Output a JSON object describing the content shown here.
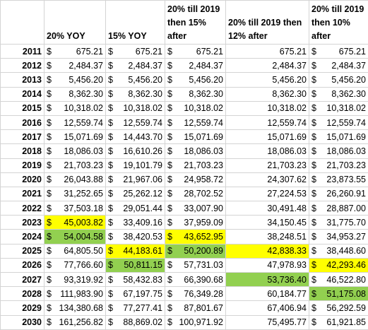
{
  "currency": "$",
  "table": {
    "columns": [
      {
        "header": "20% YOY",
        "currency": true
      },
      {
        "header": "15% YOY",
        "currency": true
      },
      {
        "header": "20% till 2019 then 15% after",
        "currency": true
      },
      {
        "header": "20% till 2019 then 12% after",
        "currency": false
      },
      {
        "header": "20% till 2019 then 10% after",
        "currency": true
      }
    ],
    "rows": [
      [
        "2011",
        "675.21",
        "675.21",
        "675.21",
        "675.21",
        "675.21"
      ],
      [
        "2012",
        "2,484.37",
        "2,484.37",
        "2,484.37",
        "2,484.37",
        "2,484.37"
      ],
      [
        "2013",
        "5,456.20",
        "5,456.20",
        "5,456.20",
        "5,456.20",
        "5,456.20"
      ],
      [
        "2014",
        "8,362.30",
        "8,362.30",
        "8,362.30",
        "8,362.30",
        "8,362.30"
      ],
      [
        "2015",
        "10,318.02",
        "10,318.02",
        "10,318.02",
        "10,318.02",
        "10,318.02"
      ],
      [
        "2016",
        "12,559.74",
        "12,559.74",
        "12,559.74",
        "12,559.74",
        "12,559.74"
      ],
      [
        "2017",
        "15,071.69",
        "14,443.70",
        "15,071.69",
        "15,071.69",
        "15,071.69"
      ],
      [
        "2018",
        "18,086.03",
        "16,610.26",
        "18,086.03",
        "18,086.03",
        "18,086.03"
      ],
      [
        "2019",
        "21,703.23",
        "19,101.79",
        "21,703.23",
        "21,703.23",
        "21,703.23"
      ],
      [
        "2020",
        "26,043.88",
        "21,967.06",
        "24,958.72",
        "24,307.62",
        "23,873.55"
      ],
      [
        "2021",
        "31,252.65",
        "25,262.12",
        "28,702.52",
        "27,224.53",
        "26,260.91"
      ],
      [
        "2022",
        "37,503.18",
        "29,051.44",
        "33,007.90",
        "30,491.48",
        "28,887.00"
      ],
      [
        "2023",
        "45,003.82",
        "33,409.16",
        "37,959.09",
        "34,150.45",
        "31,775.70"
      ],
      [
        "2024",
        "54,004.58",
        "38,420.53",
        "43,652.95",
        "38,248.51",
        "34,953.27"
      ],
      [
        "2025",
        "64,805.50",
        "44,183.61",
        "50,200.89",
        "42,838.33",
        "38,448.60"
      ],
      [
        "2026",
        "77,766.60",
        "50,811.15",
        "57,731.03",
        "47,978.93",
        "42,293.46"
      ],
      [
        "2027",
        "93,319.92",
        "58,432.83",
        "66,390.68",
        "53,736.40",
        "46,522.80"
      ],
      [
        "2028",
        "111,983.90",
        "67,197.75",
        "76,349.28",
        "60,184.77",
        "51,175.08"
      ],
      [
        "2029",
        "134,380.68",
        "77,277.41",
        "87,801.67",
        "67,406.94",
        "56,292.59"
      ],
      [
        "2030",
        "161,256.82",
        "88,869.02",
        "100,971.92",
        "75,495.77",
        "61,921.85"
      ]
    ],
    "highlights": [
      {
        "row": 12,
        "col": 1,
        "color": "#ffff00"
      },
      {
        "row": 13,
        "col": 1,
        "color": "#92d050"
      },
      {
        "row": 13,
        "col": 3,
        "color": "#ffff00"
      },
      {
        "row": 14,
        "col": 2,
        "color": "#ffff00"
      },
      {
        "row": 14,
        "col": 3,
        "color": "#92d050"
      },
      {
        "row": 14,
        "col": 4,
        "color": "#ffff00"
      },
      {
        "row": 15,
        "col": 2,
        "color": "#92d050"
      },
      {
        "row": 15,
        "col": 5,
        "color": "#ffff00"
      },
      {
        "row": 16,
        "col": 4,
        "color": "#92d050"
      },
      {
        "row": 17,
        "col": 5,
        "color": "#92d050"
      }
    ]
  }
}
